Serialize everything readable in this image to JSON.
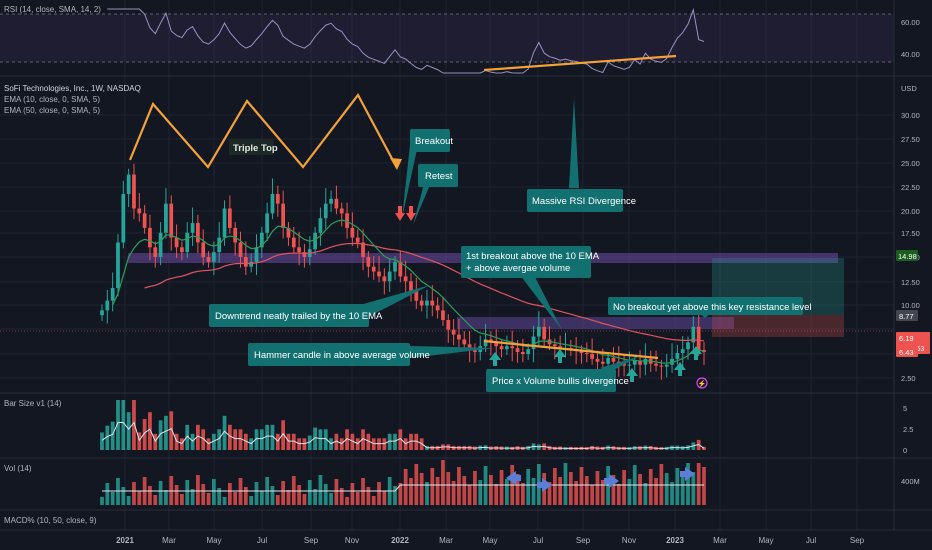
{
  "colors": {
    "background": "#131722",
    "grid": "#1f2330",
    "separator": "#2a2e39",
    "up": "#26a69a",
    "down": "#ef5350",
    "ema10": "#2e9e5b",
    "ema50": "#e05561",
    "orange": "#f3a23a",
    "rsi_line": "#9a8fc0",
    "callout": "#137071",
    "zone": "#7e57c2",
    "text": "#b2b5be"
  },
  "panels": {
    "rsi": {
      "label": "RSI (14, close, SMA, 14, 2)",
      "ticks": [
        "60.00",
        "40.00"
      ]
    },
    "main": {
      "lines": [
        "SoFi Technologies, Inc., 1W, NASDAQ",
        "EMA (10, close, 0, SMA, 5)",
        "EMA (50, close, 0, SMA, 5)"
      ],
      "currency": "USD",
      "ticks": [
        "30.00",
        "27.50",
        "25.00",
        "22.50",
        "20.00",
        "17.50",
        "15.00",
        "12.50",
        "10.00",
        "7.50",
        "5.00",
        "2.50"
      ]
    },
    "barsize": {
      "label": "Bar Size v1 (14)",
      "ticks": [
        "5",
        "2.5",
        "0"
      ]
    },
    "vol": {
      "label": "Vol (14)",
      "ticks": [
        "400M"
      ]
    },
    "macd": {
      "label": "MACD% (10, 50, close, 9)"
    }
  },
  "price_tags": [
    {
      "text": "14.98",
      "color": "#1b5e20"
    },
    {
      "text": "8.77",
      "color": "#434651"
    },
    {
      "text": "6.19",
      "color": "#ef5350"
    },
    {
      "text": "09:21:53",
      "color": "#ef5350"
    },
    {
      "text": "6.43",
      "color": "#ef5350"
    }
  ],
  "x_axis": [
    "2021",
    "Mar",
    "May",
    "Jul",
    "Sep",
    "Nov",
    "2022",
    "Mar",
    "May",
    "Jul",
    "Sep",
    "Nov",
    "2023",
    "Mar",
    "May",
    "Jul",
    "Sep"
  ],
  "annotations": {
    "triple_top": "Triple Top",
    "breakout": "Breakout",
    "retest": "Retest",
    "massive_rsi": "Massive RSI Divergence",
    "first_breakout_line1": "1st breakout above the 10 EMA",
    "first_breakout_line2": "+ above avergae volume",
    "no_breakout": "No breakout yet above this key resistance level",
    "downtrend": "Downtrend neatly trailed by the 10 EMA",
    "hammer": "Hammer candle in above average volume",
    "pv_divergence": "Price x Volume bullis divergence"
  },
  "chart_data": {
    "type": "candlestick",
    "title": "SoFi Technologies, Inc., 1W, NASDAQ",
    "ylabel": "USD",
    "ylim": [
      0,
      33
    ],
    "resistance_zone": [
      14.3,
      15.3
    ],
    "support_zone": [
      7.0,
      8.2
    ],
    "last_price": 6.19,
    "weekly_close": [
      10.5,
      11.5,
      12.8,
      17.5,
      22.5,
      24.5,
      21.0,
      20.5,
      19.0,
      17.0,
      16.0,
      18.5,
      21.5,
      18.0,
      17.0,
      16.5,
      18.5,
      19.5,
      17.5,
      16.0,
      15.5,
      16.5,
      18.0,
      21.0,
      19.0,
      17.5,
      16.0,
      15.0,
      15.5,
      17.0,
      18.5,
      20.5,
      22.5,
      21.5,
      19.0,
      18.0,
      17.0,
      16.5,
      16.0,
      16.8,
      18.5,
      20.0,
      21.5,
      22.0,
      21.0,
      20.5,
      19.0,
      18.0,
      17.5,
      16.0,
      15.0,
      14.5,
      14.0,
      13.5,
      14.5,
      15.5,
      14.0,
      13.5,
      12.5,
      11.5,
      11.0,
      11.5,
      11.0,
      10.5,
      9.5,
      8.5,
      8.0,
      7.5,
      7.0,
      6.5,
      6.2,
      6.8,
      7.5,
      7.2,
      6.8,
      6.5,
      6.8,
      6.6,
      6.2,
      6.0,
      6.5,
      7.8,
      8.8,
      7.5,
      7.0,
      6.8,
      6.5,
      6.6,
      6.4,
      6.3,
      6.1,
      6.0,
      5.5,
      5.2,
      5.0,
      5.6,
      5.2,
      5.0,
      4.8,
      4.9,
      5.3,
      4.9,
      5.5,
      5.0,
      4.8,
      4.7,
      4.9,
      5.5,
      6.1,
      6.5,
      7.2,
      8.8,
      6.4,
      6.2
    ]
  }
}
